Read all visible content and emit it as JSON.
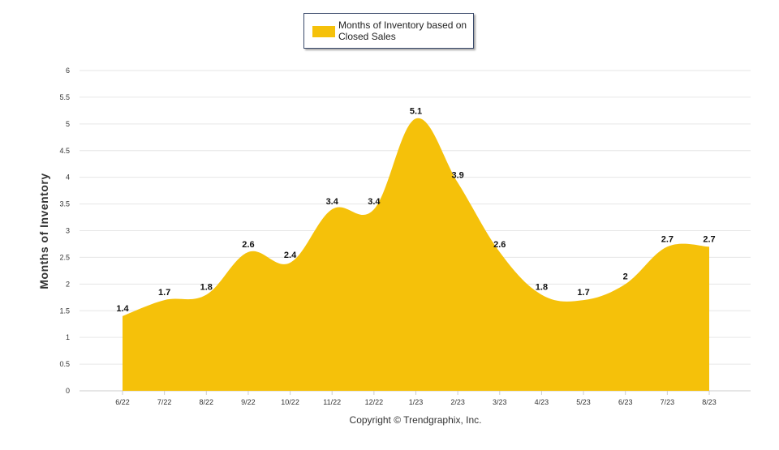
{
  "chart_data": {
    "type": "area",
    "title": "",
    "xlabel": "",
    "ylabel": "Months of Inventory",
    "ylim": [
      0,
      6
    ],
    "yticks": [
      "0",
      "0.5",
      "1",
      "1.5",
      "2",
      "2.5",
      "3",
      "3.5",
      "4",
      "4.5",
      "5",
      "5.5",
      "6"
    ],
    "ytick_values": [
      0,
      0.5,
      1,
      1.5,
      2,
      2.5,
      3,
      3.5,
      4,
      4.5,
      5,
      5.5,
      6
    ],
    "grid": true,
    "legend_position": "top-center",
    "categories": [
      "6/22",
      "7/22",
      "8/22",
      "9/22",
      "10/22",
      "11/22",
      "12/22",
      "1/23",
      "2/23",
      "3/23",
      "4/23",
      "5/23",
      "6/23",
      "7/23",
      "8/23"
    ],
    "series": [
      {
        "name": "Months of Inventory based on Closed Sales",
        "values": [
          1.4,
          1.7,
          1.8,
          2.6,
          2.4,
          3.4,
          3.4,
          5.1,
          3.9,
          2.6,
          1.8,
          1.7,
          2,
          2.7,
          2.7
        ],
        "labels": [
          "1.4",
          "1.7",
          "1.8",
          "2.6",
          "2.4",
          "3.4",
          "3.4",
          "5.1",
          "3.9",
          "2.6",
          "1.8",
          "1.7",
          "2",
          "2.7",
          "2.7"
        ],
        "color": "#f5c10a"
      }
    ]
  },
  "legend": {
    "label": "Months of Inventory based on Closed Sales"
  },
  "footer": {
    "copyright": "Copyright © Trendgraphix, Inc."
  },
  "colors": {
    "area": "#f5c10a",
    "grid": "#e6e6e6",
    "axis": "#cccccc"
  }
}
